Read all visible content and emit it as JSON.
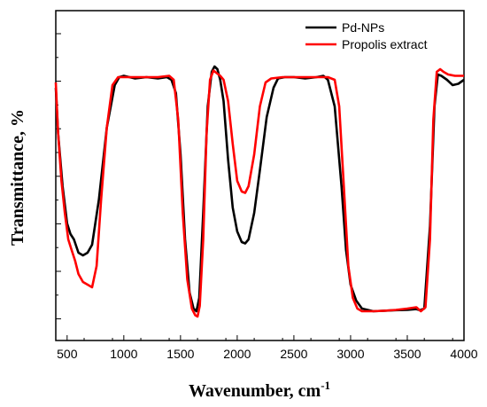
{
  "chart_data": {
    "type": "line",
    "xlabel": "Wavenumber,  cm",
    "xlabel_sup": "-1",
    "ylabel": "Transmittance,  %",
    "xlim": [
      400,
      4000
    ],
    "ylim": [
      0,
      1
    ],
    "x_ticks": [
      "500",
      "1000",
      "1500",
      "2000",
      "2500",
      "3000",
      "3500",
      "4000"
    ],
    "x_tick_values": [
      500,
      1000,
      1500,
      2000,
      2500,
      3000,
      3500,
      4000
    ],
    "y_tick_labels_shown": false,
    "grid": false,
    "legend_position": "top-right",
    "series": [
      {
        "name": "Pd-NPs",
        "color": "#000000",
        "points": [
          [
            400,
            0.87
          ],
          [
            420,
            0.7
          ],
          [
            460,
            0.5
          ],
          [
            500,
            0.36
          ],
          [
            530,
            0.32
          ],
          [
            560,
            0.3
          ],
          [
            600,
            0.25
          ],
          [
            640,
            0.24
          ],
          [
            680,
            0.25
          ],
          [
            720,
            0.28
          ],
          [
            780,
            0.45
          ],
          [
            850,
            0.72
          ],
          [
            920,
            0.88
          ],
          [
            960,
            0.91
          ],
          [
            1000,
            0.915
          ],
          [
            1100,
            0.905
          ],
          [
            1200,
            0.91
          ],
          [
            1300,
            0.905
          ],
          [
            1380,
            0.91
          ],
          [
            1420,
            0.9
          ],
          [
            1460,
            0.85
          ],
          [
            1500,
            0.62
          ],
          [
            1540,
            0.3
          ],
          [
            1580,
            0.1
          ],
          [
            1615,
            0.04
          ],
          [
            1640,
            0.03
          ],
          [
            1665,
            0.08
          ],
          [
            1700,
            0.4
          ],
          [
            1740,
            0.8
          ],
          [
            1775,
            0.93
          ],
          [
            1800,
            0.95
          ],
          [
            1825,
            0.94
          ],
          [
            1850,
            0.9
          ],
          [
            1880,
            0.82
          ],
          [
            1920,
            0.6
          ],
          [
            1960,
            0.42
          ],
          [
            2000,
            0.33
          ],
          [
            2040,
            0.29
          ],
          [
            2070,
            0.285
          ],
          [
            2100,
            0.3
          ],
          [
            2150,
            0.4
          ],
          [
            2200,
            0.56
          ],
          [
            2260,
            0.76
          ],
          [
            2320,
            0.87
          ],
          [
            2360,
            0.905
          ],
          [
            2420,
            0.91
          ],
          [
            2500,
            0.91
          ],
          [
            2600,
            0.905
          ],
          [
            2700,
            0.91
          ],
          [
            2760,
            0.915
          ],
          [
            2800,
            0.9
          ],
          [
            2860,
            0.8
          ],
          [
            2920,
            0.5
          ],
          [
            2960,
            0.26
          ],
          [
            3000,
            0.13
          ],
          [
            3050,
            0.07
          ],
          [
            3100,
            0.04
          ],
          [
            3200,
            0.03
          ],
          [
            3300,
            0.032
          ],
          [
            3400,
            0.034
          ],
          [
            3500,
            0.035
          ],
          [
            3580,
            0.038
          ],
          [
            3610,
            0.034
          ],
          [
            3650,
            0.04
          ],
          [
            3700,
            0.35
          ],
          [
            3740,
            0.8
          ],
          [
            3770,
            0.92
          ],
          [
            3800,
            0.915
          ],
          [
            3850,
            0.9
          ],
          [
            3900,
            0.88
          ],
          [
            3950,
            0.885
          ],
          [
            4000,
            0.9
          ]
        ]
      },
      {
        "name": "Propolis extract",
        "color": "#ff0000",
        "points": [
          [
            400,
            0.89
          ],
          [
            420,
            0.7
          ],
          [
            450,
            0.52
          ],
          [
            480,
            0.4
          ],
          [
            510,
            0.3
          ],
          [
            540,
            0.26
          ],
          [
            570,
            0.22
          ],
          [
            600,
            0.17
          ],
          [
            640,
            0.14
          ],
          [
            680,
            0.13
          ],
          [
            720,
            0.12
          ],
          [
            760,
            0.2
          ],
          [
            800,
            0.45
          ],
          [
            850,
            0.72
          ],
          [
            900,
            0.88
          ],
          [
            950,
            0.91
          ],
          [
            1000,
            0.91
          ],
          [
            1100,
            0.91
          ],
          [
            1200,
            0.91
          ],
          [
            1300,
            0.91
          ],
          [
            1400,
            0.915
          ],
          [
            1440,
            0.9
          ],
          [
            1480,
            0.75
          ],
          [
            1520,
            0.4
          ],
          [
            1560,
            0.15
          ],
          [
            1600,
            0.04
          ],
          [
            1630,
            0.015
          ],
          [
            1650,
            0.01
          ],
          [
            1670,
            0.05
          ],
          [
            1700,
            0.3
          ],
          [
            1730,
            0.7
          ],
          [
            1760,
            0.9
          ],
          [
            1790,
            0.935
          ],
          [
            1820,
            0.925
          ],
          [
            1850,
            0.915
          ],
          [
            1880,
            0.9
          ],
          [
            1920,
            0.82
          ],
          [
            1960,
            0.66
          ],
          [
            2000,
            0.52
          ],
          [
            2040,
            0.48
          ],
          [
            2070,
            0.475
          ],
          [
            2100,
            0.5
          ],
          [
            2150,
            0.62
          ],
          [
            2200,
            0.8
          ],
          [
            2250,
            0.89
          ],
          [
            2300,
            0.905
          ],
          [
            2400,
            0.91
          ],
          [
            2500,
            0.91
          ],
          [
            2600,
            0.91
          ],
          [
            2700,
            0.91
          ],
          [
            2800,
            0.91
          ],
          [
            2860,
            0.9
          ],
          [
            2900,
            0.8
          ],
          [
            2940,
            0.5
          ],
          [
            2980,
            0.2
          ],
          [
            3020,
            0.08
          ],
          [
            3060,
            0.04
          ],
          [
            3100,
            0.03
          ],
          [
            3200,
            0.03
          ],
          [
            3300,
            0.032
          ],
          [
            3400,
            0.035
          ],
          [
            3500,
            0.04
          ],
          [
            3580,
            0.045
          ],
          [
            3620,
            0.03
          ],
          [
            3660,
            0.045
          ],
          [
            3700,
            0.3
          ],
          [
            3730,
            0.75
          ],
          [
            3760,
            0.93
          ],
          [
            3790,
            0.94
          ],
          [
            3820,
            0.93
          ],
          [
            3860,
            0.92
          ],
          [
            3920,
            0.915
          ],
          [
            4000,
            0.915
          ]
        ]
      }
    ]
  }
}
